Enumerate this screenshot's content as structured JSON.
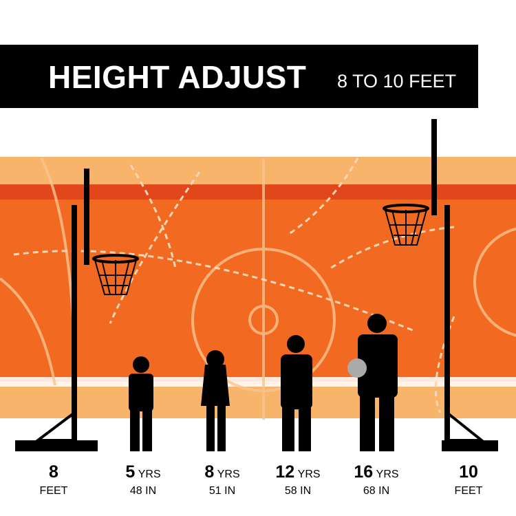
{
  "header": {
    "title": "HEIGHT ADJUST",
    "subtitle": "8 TO 10 FEET"
  },
  "colors": {
    "light_orange": "#f9b46c",
    "orange": "#f26a21",
    "dark_orange": "#e2461b",
    "black": "#000000"
  },
  "labels": [
    {
      "value": "8",
      "unit": "",
      "sub": "FEET"
    },
    {
      "value": "5",
      "unit": "YRS",
      "sub": "48 IN"
    },
    {
      "value": "8",
      "unit": "YRS",
      "sub": "51 IN"
    },
    {
      "value": "12",
      "unit": "YRS",
      "sub": "58 IN"
    },
    {
      "value": "16",
      "unit": "YRS",
      "sub": "68 IN"
    },
    {
      "value": "10",
      "unit": "",
      "sub": "FEET"
    }
  ]
}
